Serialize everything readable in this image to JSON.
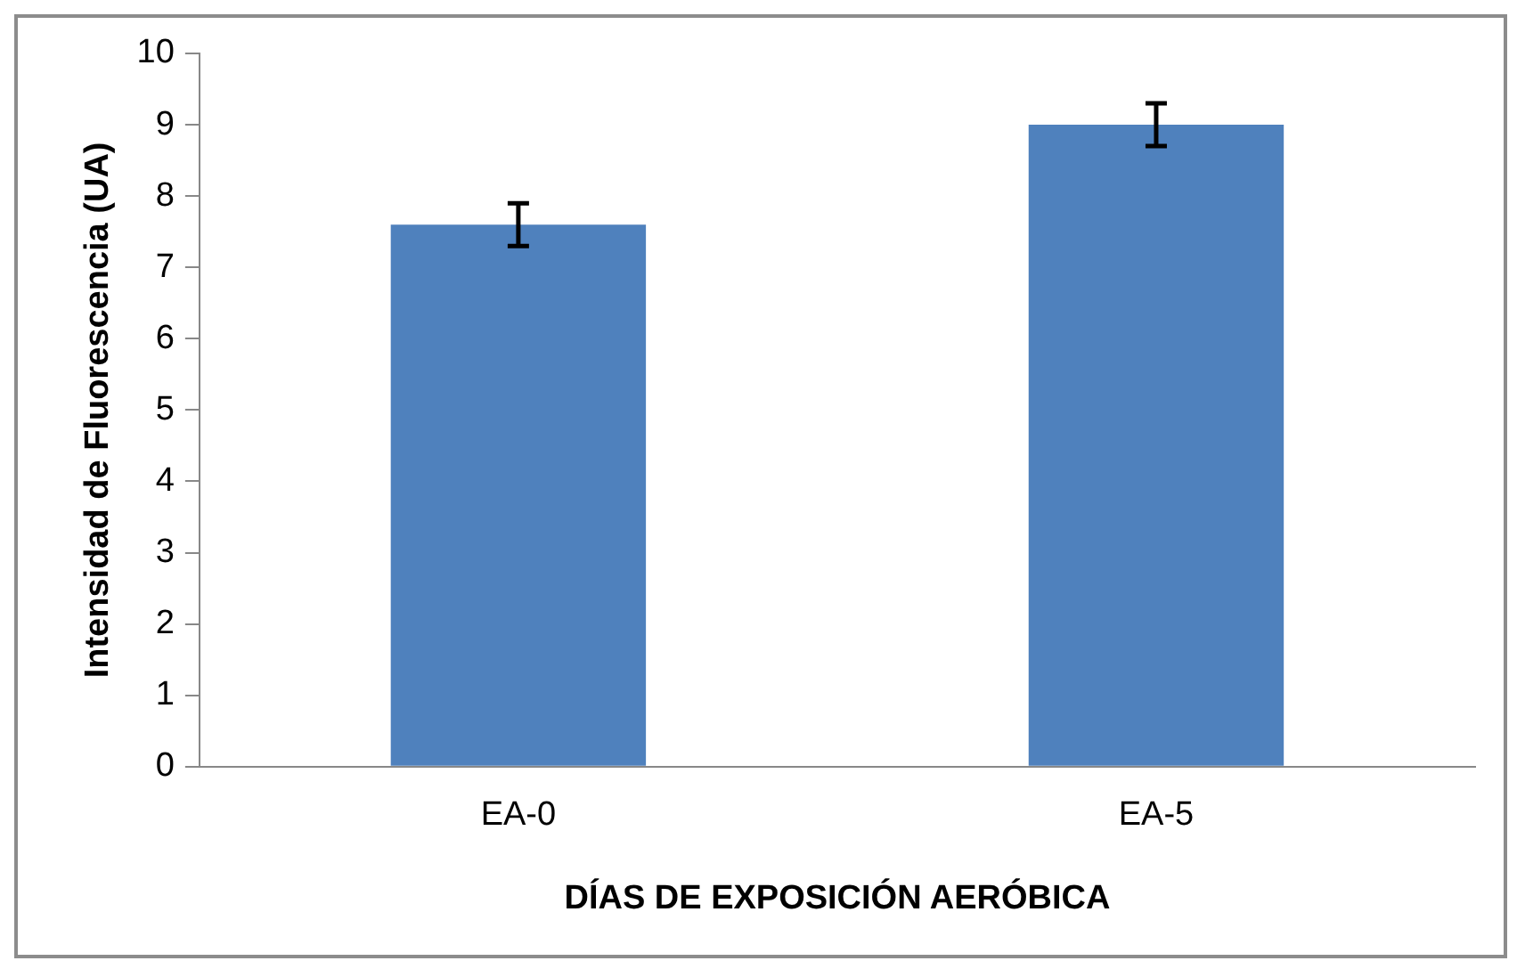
{
  "chart_data": {
    "type": "bar",
    "xlabel": "DÍAS DE EXPOSICIÓN AERÓBICA",
    "ylabel": "Intensidad de Fluorescencia (UA)",
    "categories": [
      "EA-0",
      "EA-5"
    ],
    "values": [
      7.6,
      9.0
    ],
    "errors": [
      0.3,
      0.3
    ],
    "color": "#4f81bd",
    "ylim": [
      0,
      10
    ],
    "yticks": [
      0,
      1,
      2,
      3,
      4,
      5,
      6,
      7,
      8,
      9,
      10
    ],
    "grid": false,
    "legend": false
  }
}
